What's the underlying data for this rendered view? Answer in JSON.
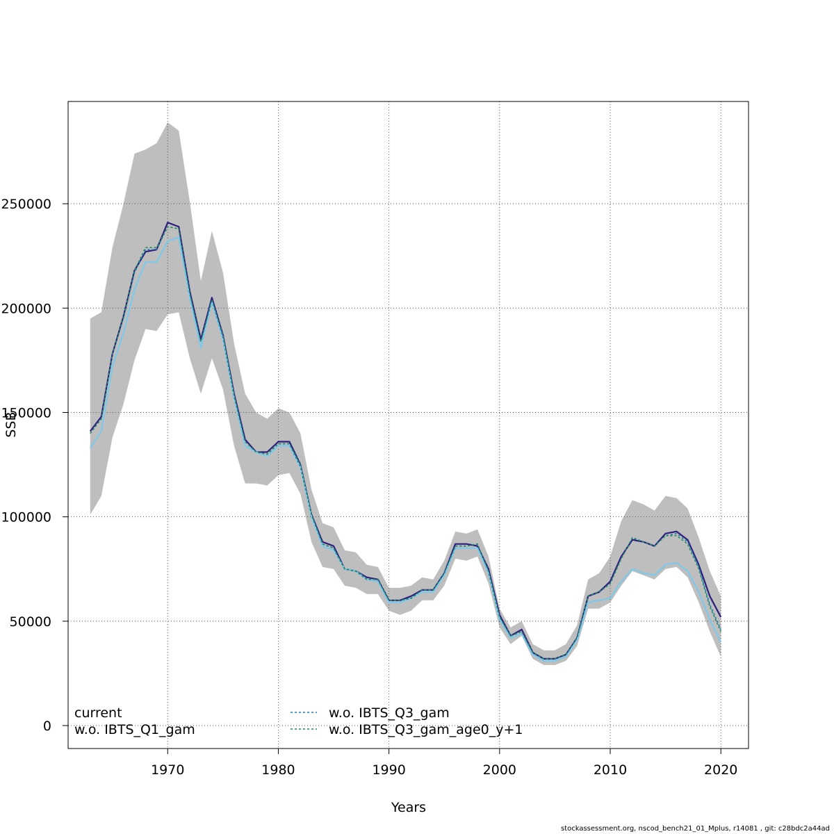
{
  "chart_data": {
    "type": "line",
    "xlabel": "Years",
    "ylabel": "SSB",
    "xlim": [
      1961,
      2022.5
    ],
    "ylim": [
      -11000,
      299000
    ],
    "x_ticks": [
      1970,
      1980,
      1990,
      2000,
      2010,
      2020
    ],
    "y_ticks": [
      0,
      50000,
      100000,
      150000,
      200000,
      250000
    ],
    "grid": true,
    "legend_position": "bottom",
    "x": [
      1963,
      1964,
      1965,
      1966,
      1967,
      1968,
      1969,
      1970,
      1971,
      1972,
      1973,
      1974,
      1975,
      1976,
      1977,
      1978,
      1979,
      1980,
      1981,
      1982,
      1983,
      1984,
      1985,
      1986,
      1987,
      1988,
      1989,
      1990,
      1991,
      1992,
      1993,
      1994,
      1995,
      1996,
      1997,
      1998,
      1999,
      2000,
      2001,
      2002,
      2003,
      2004,
      2005,
      2006,
      2007,
      2008,
      2009,
      2010,
      2011,
      2012,
      2013,
      2014,
      2015,
      2016,
      2017,
      2018,
      2019,
      2020
    ],
    "confidence_band": {
      "color": "#bebebe",
      "upper": [
        195000,
        198000,
        229000,
        250000,
        274000,
        276000,
        279000,
        289000,
        285000,
        251000,
        213000,
        237000,
        217000,
        183000,
        159000,
        150000,
        147000,
        152000,
        150000,
        140000,
        113000,
        97000,
        95000,
        84000,
        83000,
        77000,
        76000,
        66000,
        66000,
        67000,
        71000,
        70000,
        79000,
        93000,
        92000,
        94000,
        81000,
        56000,
        47000,
        50000,
        39000,
        36000,
        36000,
        39000,
        48000,
        70000,
        73000,
        81000,
        98000,
        108000,
        106000,
        103000,
        110000,
        109000,
        104000,
        90000,
        74000,
        62000
      ],
      "lower": [
        101000,
        110000,
        138000,
        154000,
        175000,
        190000,
        189000,
        197000,
        198000,
        176000,
        159000,
        176000,
        161000,
        134000,
        116000,
        116000,
        115000,
        120000,
        121000,
        111000,
        88000,
        76000,
        75000,
        67000,
        66000,
        63000,
        63000,
        55000,
        53000,
        55000,
        60000,
        60000,
        67000,
        80000,
        79000,
        81000,
        68000,
        47000,
        39000,
        43000,
        32000,
        29000,
        29000,
        31000,
        38000,
        56000,
        56000,
        59000,
        67000,
        74000,
        72000,
        70000,
        75000,
        76000,
        71000,
        59000,
        45000,
        33000
      ]
    },
    "series": [
      {
        "name": "current",
        "color": "#2d1e7e",
        "dash": "",
        "width": 2.2,
        "values": [
          141000,
          148000,
          178000,
          196000,
          218000,
          227000,
          228000,
          241000,
          239000,
          208000,
          185000,
          205000,
          187000,
          159000,
          137000,
          131000,
          131000,
          136000,
          136000,
          125000,
          101000,
          88000,
          86000,
          75000,
          74000,
          71000,
          70000,
          60000,
          60000,
          62000,
          65000,
          65000,
          73000,
          87000,
          87000,
          86000,
          75000,
          53000,
          43000,
          46000,
          35000,
          32000,
          32000,
          34000,
          42000,
          62000,
          64000,
          69000,
          81000,
          89000,
          88000,
          86000,
          92000,
          93000,
          89000,
          77000,
          62000,
          52000
        ]
      },
      {
        "name": "w.o. IBTS_Q1_gam",
        "color": "#7ec8e9",
        "dash": "",
        "width": 2.2,
        "values": [
          133000,
          141000,
          172000,
          188000,
          209000,
          222000,
          222000,
          232000,
          234000,
          205000,
          181000,
          203000,
          185000,
          157000,
          134000,
          131000,
          129000,
          134000,
          134000,
          124000,
          100000,
          86000,
          84000,
          75000,
          74000,
          70000,
          69000,
          59000,
          59000,
          61000,
          64000,
          64000,
          72000,
          85000,
          85000,
          85000,
          73000,
          51000,
          42000,
          44000,
          34000,
          31000,
          31000,
          33000,
          41000,
          59000,
          60000,
          61000,
          69000,
          75000,
          73000,
          72000,
          77000,
          78000,
          74000,
          64000,
          51000,
          40000
        ]
      },
      {
        "name": "w.o. IBTS_Q3_gam",
        "color": "#1c7bb5",
        "dash": "3,3",
        "width": 1.6,
        "values": [
          140000,
          147000,
          178000,
          195000,
          217000,
          228000,
          228000,
          239000,
          238000,
          207000,
          184000,
          204000,
          186000,
          158000,
          136000,
          131000,
          130000,
          135000,
          135000,
          124000,
          101000,
          87000,
          85000,
          75000,
          74000,
          70000,
          70000,
          60000,
          60000,
          61000,
          65000,
          65000,
          73000,
          86000,
          86000,
          87000,
          74000,
          52000,
          43000,
          45000,
          35000,
          32000,
          32000,
          34000,
          42000,
          62000,
          64000,
          68000,
          80000,
          90000,
          88000,
          86000,
          91000,
          92000,
          88000,
          76000,
          58000,
          46000
        ]
      },
      {
        "name": "w.o. IBTS_Q3_gam_age0_y+1",
        "color": "#1e8a5e",
        "dash": "3,3",
        "width": 1.6,
        "values": [
          140000,
          147000,
          178000,
          196000,
          218000,
          229000,
          229000,
          239000,
          238000,
          207000,
          184000,
          204000,
          187000,
          158000,
          136000,
          131000,
          130000,
          135000,
          135000,
          125000,
          101000,
          87000,
          85000,
          75000,
          74000,
          70000,
          70000,
          60000,
          60000,
          61000,
          65000,
          65000,
          73000,
          86000,
          86000,
          87000,
          74000,
          52000,
          43000,
          45000,
          35000,
          32000,
          32000,
          34000,
          42000,
          62000,
          64000,
          68000,
          80000,
          90000,
          88000,
          86000,
          91000,
          91000,
          87000,
          75000,
          57000,
          45000
        ]
      }
    ]
  },
  "footer_text": "stockassessment.org, nscod_bench21_01_Mplus, r14081 , git: c28bdc2a44ad"
}
